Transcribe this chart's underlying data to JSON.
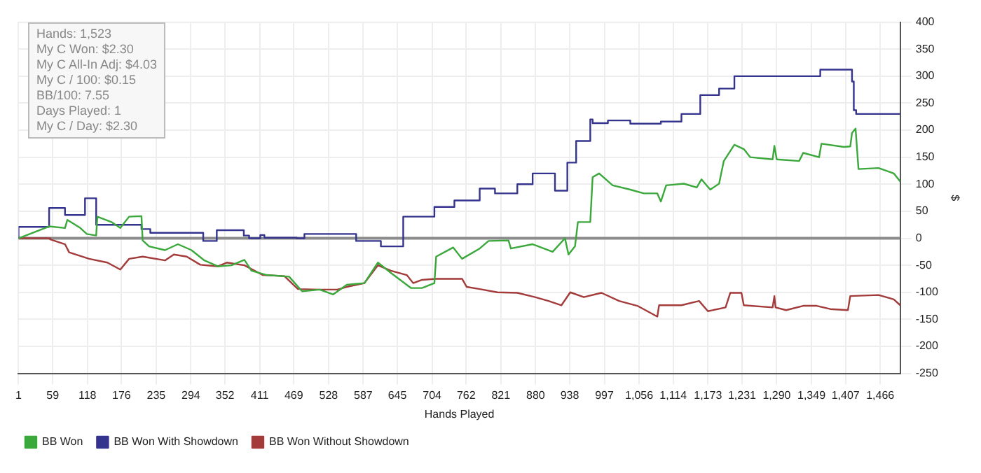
{
  "chart_data": {
    "type": "line",
    "xlabel": "Hands Played",
    "ylabel": "$",
    "xlim": [
      1,
      1500
    ],
    "xticks": [
      1,
      59,
      118,
      176,
      235,
      294,
      352,
      411,
      469,
      528,
      587,
      645,
      704,
      762,
      821,
      880,
      938,
      997,
      {
        "value": 1056,
        "label": "1,056"
      },
      {
        "value": 1114,
        "label": "1,114"
      },
      {
        "value": 1173,
        "label": "1,173"
      },
      {
        "value": 1231,
        "label": "1,231"
      },
      {
        "value": 1290,
        "label": "1,290"
      },
      {
        "value": 1349,
        "label": "1,349"
      },
      {
        "value": 1407,
        "label": "1,407"
      },
      {
        "value": 1466,
        "label": "1,466"
      }
    ],
    "ylim": [
      -250,
      400
    ],
    "yticks": [
      -250,
      -200,
      -150,
      -100,
      -50,
      0,
      50,
      100,
      150,
      200,
      250,
      300,
      350,
      400
    ],
    "grid": true,
    "legend": "bottom",
    "marker": "none",
    "line_style": "solid",
    "ref_lines": [
      {
        "axis": "y",
        "value": 0,
        "color": "#8c8c8c"
      }
    ],
    "annotations": [
      "Hands: 1,523",
      "My C Won: $2.30",
      "My C All-In Adj: $4.03",
      "My C / 100: $0.15",
      "BB/100: 7.55",
      "Days Played: 1",
      "My C / Day: $2.30"
    ],
    "series": [
      {
        "name": "BB Won",
        "color": "#3aa83a",
        "x": [
          1,
          53,
          80,
          84,
          106,
          117,
          133,
          135,
          159,
          174,
          189,
          210,
          212,
          223,
          250,
          272,
          295,
          317,
          340,
          363,
          385,
          397,
          423,
          461,
          483,
          513,
          536,
          559,
          589,
          612,
          634,
          668,
          687,
          708,
          711,
          740,
          755,
          785,
          800,
          834,
          838,
          875,
          909,
          930,
          936,
          947,
          952,
          973,
          977,
          988,
          1011,
          1041,
          1064,
          1087,
          1093,
          1102,
          1132,
          1154,
          1162,
          1177,
          1192,
          1200,
          1218,
          1234,
          1245,
          1283,
          1286,
          1290,
          1328,
          1335,
          1362,
          1366,
          1404,
          1415,
          1418,
          1424,
          1429,
          1463,
          1489,
          1500
        ],
        "values": [
          0,
          22,
          19,
          34,
          19,
          8,
          5,
          40,
          30,
          19,
          40,
          41,
          -4,
          -15,
          -22,
          -11,
          -22,
          -41,
          -52,
          -50,
          -40,
          -60,
          -68,
          -71,
          -98,
          -95,
          -104,
          -86,
          -83,
          -45,
          -64,
          -92,
          -92,
          -83,
          -34,
          -17,
          -38,
          -19,
          -5,
          -4,
          -19,
          -11,
          -25,
          0,
          -30,
          -15,
          30,
          30,
          113,
          120,
          98,
          90,
          83,
          83,
          68,
          98,
          101,
          94,
          109,
          90,
          101,
          143,
          173,
          165,
          150,
          146,
          171,
          146,
          143,
          158,
          150,
          175,
          169,
          170,
          195,
          203,
          128,
          130,
          120,
          105
        ]
      },
      {
        "name": "BB Won With Showdown",
        "color": "#34348f",
        "type": "step",
        "x": [
          1,
          53,
          80,
          114,
          133,
          210,
          225,
          315,
          338,
          384,
          393,
          412,
          419,
          474,
          487,
          575,
          617,
          655,
          708,
          742,
          785,
          811,
          849,
          875,
          913,
          934,
          949,
          973,
          977,
          1003,
          1041,
          1093,
          1128,
          1160,
          1192,
          1218,
          1364,
          1418,
          1421,
          1425,
          1489,
          1500
        ],
        "values": [
          0,
          21,
          56,
          43,
          74,
          25,
          17,
          10,
          -5,
          15,
          5,
          0,
          6,
          1,
          0,
          8,
          -5,
          -15,
          40,
          58,
          70,
          92,
          83,
          100,
          120,
          88,
          140,
          180,
          220,
          213,
          218,
          212,
          216,
          230,
          265,
          277,
          300,
          312,
          290,
          237,
          230,
          230
        ]
      },
      {
        "name": "BB Won Without Showdown",
        "color": "#a33b3b",
        "x": [
          1,
          53,
          55,
          80,
          87,
          121,
          152,
          174,
          189,
          212,
          250,
          265,
          287,
          310,
          340,
          355,
          385,
          416,
          453,
          476,
          513,
          543,
          559,
          589,
          612,
          634,
          661,
          672,
          687,
          710,
          755,
          763,
          785,
          815,
          849,
          879,
          902,
          924,
          939,
          962,
          992,
          1022,
          1053,
          1087,
          1090,
          1128,
          1158,
          1173,
          1203,
          1211,
          1230,
          1234,
          1283,
          1286,
          1288,
          1306,
          1335,
          1358,
          1381,
          1411,
          1415,
          1463,
          1489,
          1500
        ],
        "values": [
          0,
          0,
          -2,
          -11,
          -26,
          -38,
          -45,
          -58,
          -38,
          -34,
          -41,
          -30,
          -34,
          -49,
          -52,
          -45,
          -50,
          -68,
          -70,
          -94,
          -95,
          -95,
          -90,
          -83,
          -50,
          -60,
          -68,
          -83,
          -77,
          -75,
          -75,
          -90,
          -94,
          -100,
          -101,
          -109,
          -116,
          -124,
          -100,
          -109,
          -101,
          -116,
          -125,
          -145,
          -124,
          -124,
          -116,
          -135,
          -128,
          -101,
          -101,
          -124,
          -128,
          -107,
          -128,
          -133,
          -125,
          -125,
          -131,
          -133,
          -107,
          -105,
          -113,
          -124
        ]
      }
    ]
  }
}
